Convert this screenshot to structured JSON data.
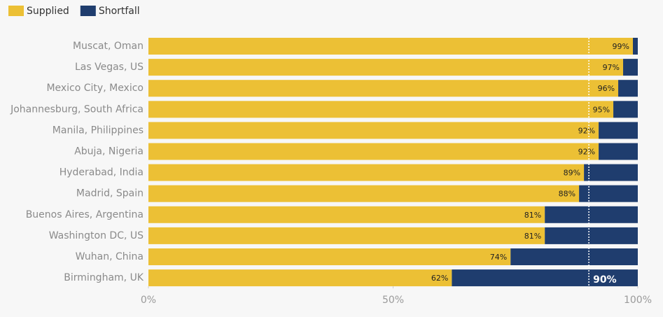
{
  "chart_data": {
    "type": "stacked-barh",
    "categories": [
      "Muscat, Oman",
      "Las Vegas, US",
      "Mexico City, Mexico",
      "Johannesburg, South Africa",
      "Manila, Philippines",
      "Abuja, Nigeria",
      "Hyderabad, India",
      "Madrid, Spain",
      "Buenos Aires, Argentina",
      "Washington DC, US",
      "Wuhan, China",
      "Birmingham, UK"
    ],
    "series": [
      {
        "name": "Supplied",
        "color": "#ecc035",
        "values": [
          99,
          97,
          96,
          95,
          92,
          92,
          89,
          88,
          81,
          81,
          74,
          62
        ],
        "value_labels": [
          "99%",
          "97%",
          "96%",
          "95%",
          "92%",
          "92%",
          "89%",
          "88%",
          "81%",
          "81%",
          "74%",
          "62%"
        ]
      },
      {
        "name": "Shortfall",
        "color": "#1f3d6e",
        "values": [
          1,
          3,
          4,
          5,
          8,
          8,
          11,
          12,
          19,
          19,
          26,
          38
        ]
      }
    ],
    "xlim": [
      0,
      100
    ],
    "xticks": [
      {
        "value": 0,
        "label": "0%"
      },
      {
        "value": 50,
        "label": "50%"
      },
      {
        "value": 100,
        "label": "100%"
      }
    ],
    "reference_line": {
      "value": 90,
      "label": "90%"
    },
    "legend": "top-left"
  }
}
